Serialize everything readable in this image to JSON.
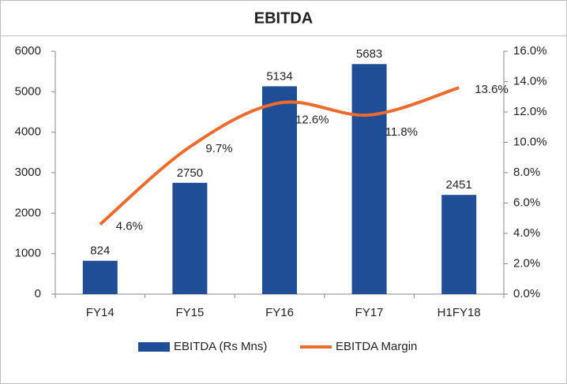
{
  "chart_data": {
    "type": "bar",
    "title": "EBITDA",
    "categories": [
      "FY14",
      "FY15",
      "FY16",
      "FY17",
      "H1FY18"
    ],
    "series": [
      {
        "name": "EBITDA (Rs Mns)",
        "type": "bar",
        "color": "#1f4e96",
        "values": [
          824,
          2750,
          5134,
          5683,
          2451
        ]
      },
      {
        "name": "EBITDA Margin",
        "type": "line",
        "axis": "y2",
        "color": "#ed6b2c",
        "values": [
          4.6,
          9.7,
          12.6,
          11.8,
          13.6
        ],
        "value_labels": [
          "4.6%",
          "9.7%",
          "12.6%",
          "11.8%",
          "13.6%"
        ]
      }
    ],
    "ylim": [
      0,
      6000
    ],
    "yticks": [
      0,
      1000,
      2000,
      3000,
      4000,
      5000,
      6000
    ],
    "y2lim": [
      0,
      16
    ],
    "y2ticks": [
      {
        "value": 0,
        "label": "0.0%"
      },
      {
        "value": 2,
        "label": "2.0%"
      },
      {
        "value": 4,
        "label": "4.0%"
      },
      {
        "value": 6,
        "label": "6.0%"
      },
      {
        "value": 8,
        "label": "8.0%"
      },
      {
        "value": 10,
        "label": "10.0%"
      },
      {
        "value": 12,
        "label": "12.0%"
      },
      {
        "value": 14,
        "label": "14.0%"
      },
      {
        "value": 16,
        "label": "16.0%"
      }
    ],
    "grid": false,
    "legend": "bottom"
  }
}
